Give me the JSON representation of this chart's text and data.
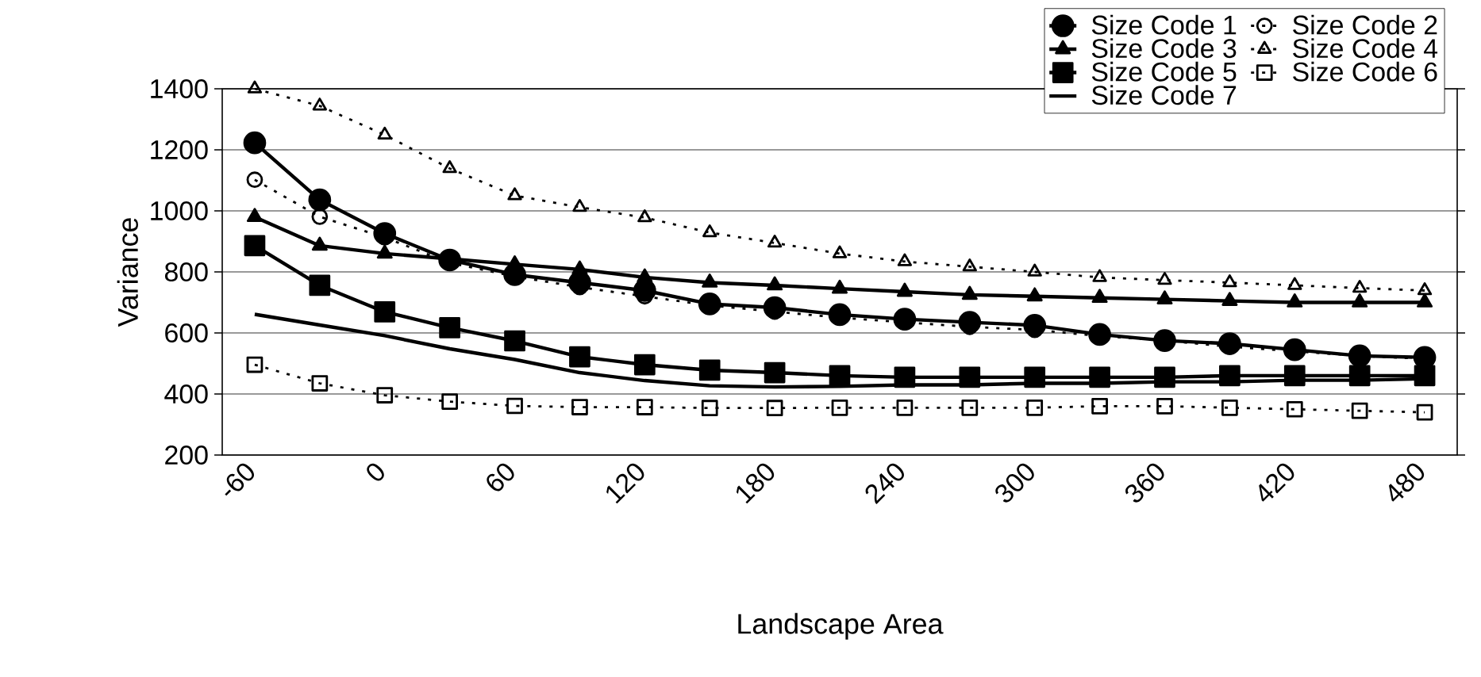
{
  "chart_data": {
    "type": "line",
    "xlabel": "Landscape Area",
    "ylabel": "Variance",
    "categories": [
      "-60",
      null,
      "0",
      null,
      "60",
      null,
      "120",
      null,
      "180",
      null,
      "240",
      null,
      "300",
      null,
      "360",
      null,
      "420",
      null,
      "480"
    ],
    "ylim": [
      200,
      1400
    ],
    "yticks": [
      200,
      400,
      600,
      800,
      1000,
      1200,
      1400
    ],
    "grid": "y",
    "legend": "top right",
    "series": [
      {
        "name": "Size Code 1",
        "color": "#000000",
        "marker": "circle",
        "line_style": "solid",
        "values": [
          1223,
          1036,
          926,
          839,
          791,
          765,
          739,
          695,
          683,
          660,
          645,
          635,
          625,
          595,
          575,
          565,
          545,
          525,
          520
        ]
      },
      {
        "name": "Size Code 2",
        "color": "#000000",
        "marker": "circle",
        "line_style": "dotted",
        "values": [
          1102,
          981,
          913,
          830,
          785,
          750,
          720,
          690,
          670,
          650,
          635,
          620,
          610,
          590,
          575,
          555,
          540,
          525,
          515
        ]
      },
      {
        "name": "Size Code 3",
        "color": "#000000",
        "marker": "triangle",
        "line_style": "solid",
        "values": [
          980,
          886,
          860,
          843,
          825,
          808,
          782,
          765,
          756,
          745,
          735,
          725,
          720,
          715,
          710,
          705,
          700,
          700,
          700
        ]
      },
      {
        "name": "Size Code 4",
        "color": "#000000",
        "marker": "triangle",
        "line_style": "dotted",
        "values": [
          1400,
          1344,
          1249,
          1139,
          1050,
          1012,
          978,
          929,
          895,
          860,
          834,
          817,
          800,
          782,
          773,
          765,
          756,
          747,
          739
        ]
      },
      {
        "name": "Size Code 5",
        "color": "#000000",
        "marker": "square",
        "line_style": "solid",
        "values": [
          886,
          756,
          669,
          617,
          574,
          522,
          496,
          478,
          470,
          460,
          455,
          455,
          455,
          455,
          455,
          460,
          460,
          460,
          460
        ]
      },
      {
        "name": "Size Code 6",
        "color": "#000000",
        "marker": "square",
        "line_style": "dotted",
        "values": [
          496,
          435,
          396,
          375,
          361,
          357,
          357,
          354,
          354,
          355,
          355,
          355,
          355,
          360,
          360,
          355,
          350,
          345,
          340
        ]
      },
      {
        "name": "Size Code 7",
        "color": "#000000",
        "marker": "none",
        "line_style": "solid",
        "values": [
          661,
          626,
          591,
          548,
          513,
          470,
          444,
          427,
          423,
          425,
          430,
          430,
          435,
          435,
          440,
          440,
          445,
          445,
          450
        ]
      }
    ]
  }
}
